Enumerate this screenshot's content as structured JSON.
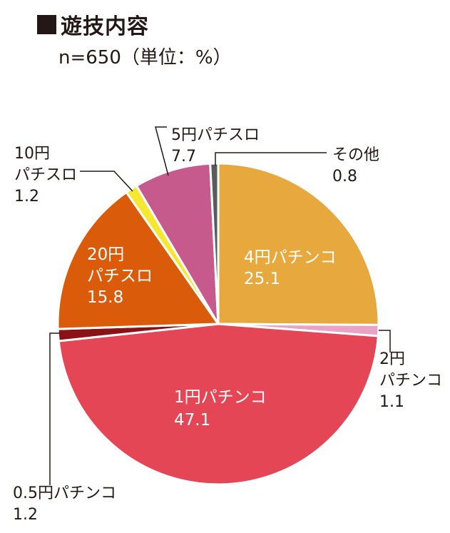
{
  "title": "遊技内容",
  "subtitle": "n=650（単位：%）",
  "chart_data": {
    "type": "pie",
    "title": "遊技内容",
    "subtitle": "n=650（単位：%）",
    "slices": [
      {
        "name": "4円パチンコ",
        "value": 25.1,
        "label_lines": [
          "4円パチンコ",
          "25.1"
        ],
        "color": "#E7A83E",
        "label_inside": true
      },
      {
        "name": "2円パチンコ",
        "value": 1.1,
        "label_lines": [
          "2円",
          "パチンコ",
          "1.1"
        ],
        "color": "#E9A3C4",
        "label_inside": false
      },
      {
        "name": "1円パチンコ",
        "value": 47.1,
        "label_lines": [
          "1円パチンコ",
          "47.1"
        ],
        "color": "#E54656",
        "label_inside": true
      },
      {
        "name": "0.5円パチンコ",
        "value": 1.2,
        "label_lines": [
          "0.5円パチンコ",
          "1.2"
        ],
        "color": "#8A1216",
        "label_inside": false
      },
      {
        "name": "20円パチスロ",
        "value": 15.8,
        "label_lines": [
          "20円",
          "パチスロ",
          "15.8"
        ],
        "color": "#DA5B0A",
        "label_inside": true
      },
      {
        "name": "10円パチスロ",
        "value": 1.2,
        "label_lines": [
          "10円",
          "パチスロ",
          "1.2"
        ],
        "color": "#F5E732",
        "label_inside": false
      },
      {
        "name": "5円パチスロ",
        "value": 7.7,
        "label_lines": [
          "5円パチスロ",
          "7.7"
        ],
        "color": "#C65A8D",
        "label_inside": false
      },
      {
        "name": "その他",
        "value": 0.8,
        "label_lines": [
          "その他",
          "0.8"
        ],
        "color": "#5A5A5A",
        "label_inside": false
      }
    ]
  }
}
